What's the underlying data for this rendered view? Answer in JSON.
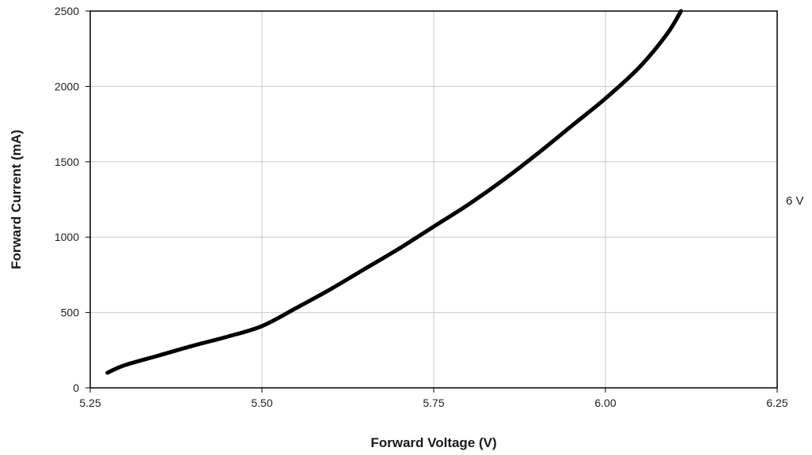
{
  "chart_data": {
    "type": "line",
    "title": "",
    "xlabel": "Forward Voltage (V)",
    "ylabel": "Forward Current (mA)",
    "xlim": [
      5.25,
      6.25
    ],
    "ylim": [
      0,
      2500
    ],
    "x_ticks": [
      5.25,
      5.5,
      5.75,
      6.0,
      6.25
    ],
    "x_tick_labels": [
      "5.25",
      "5.50",
      "5.75",
      "6.00",
      "6.25"
    ],
    "y_ticks": [
      0,
      500,
      1000,
      1500,
      2000,
      2500
    ],
    "y_tick_labels": [
      "0",
      "500",
      "1000",
      "1500",
      "2000",
      "2500"
    ],
    "grid": true,
    "series": [
      {
        "name": "6 V",
        "color": "#000000",
        "x": [
          5.275,
          5.3,
          5.35,
          5.4,
          5.45,
          5.5,
          5.55,
          5.6,
          5.65,
          5.7,
          5.75,
          5.8,
          5.85,
          5.9,
          5.95,
          6.0,
          6.05,
          6.09,
          6.11
        ],
        "y": [
          100,
          150,
          215,
          280,
          340,
          410,
          530,
          655,
          790,
          925,
          1070,
          1215,
          1375,
          1550,
          1735,
          1920,
          2130,
          2350,
          2500
        ]
      }
    ],
    "annotations": [
      {
        "text": "6 V"
      }
    ]
  }
}
